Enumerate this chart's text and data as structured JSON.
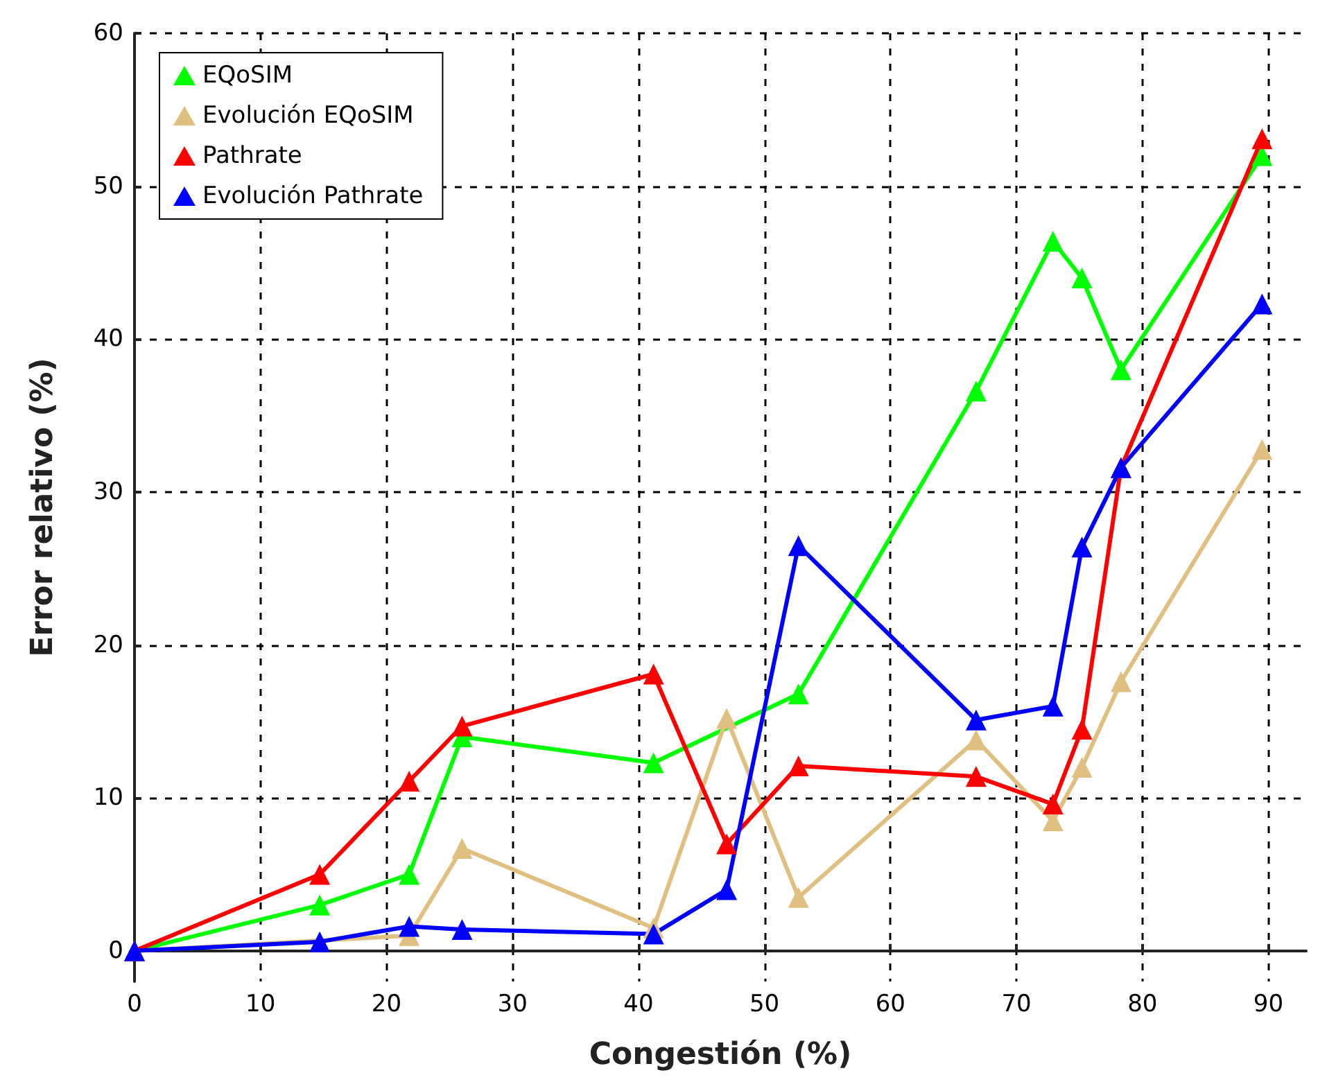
{
  "chart_data": {
    "type": "line",
    "xlabel": "Congestión (%)",
    "ylabel": "Error relativo (%)",
    "x": [
      0,
      14.7,
      21.8,
      26,
      41.2,
      47,
      52.7,
      66.8,
      72.9,
      75.2,
      78.3,
      89.5
    ],
    "series": [
      {
        "name": "EQoSIM",
        "color": "#00ff00",
        "values": [
          0,
          3,
          5,
          14,
          12.3,
          null,
          16.8,
          36.6,
          46.4,
          44,
          38,
          52
        ]
      },
      {
        "name": "Evolución EQoSIM",
        "color": "#dfc080",
        "values": [
          0,
          null,
          1,
          6.7,
          1.5,
          15.2,
          3.5,
          13.8,
          8.5,
          12,
          17.6,
          32.8
        ]
      },
      {
        "name": "Pathrate",
        "color": "#ff0000",
        "values": [
          0,
          5,
          11.1,
          14.7,
          18.1,
          7,
          12.1,
          11.4,
          9.6,
          14.5,
          31.6,
          53.1
        ]
      },
      {
        "name": "Evolución Pathrate",
        "color": "#0000ff",
        "values": [
          0,
          0.6,
          1.6,
          1.4,
          1.1,
          4,
          26.5,
          15.1,
          16,
          26.4,
          31.6,
          42.3
        ]
      }
    ],
    "xlim": [
      0,
      93
    ],
    "xticks": [
      0,
      10,
      20,
      30,
      40,
      50,
      60,
      70,
      80,
      90
    ],
    "ylim": [
      -2,
      60
    ],
    "yticks": [
      0,
      10,
      20,
      30,
      40,
      50,
      60
    ],
    "grid": true,
    "legend": "top left",
    "marker": "triangle",
    "line_style": "solid"
  }
}
